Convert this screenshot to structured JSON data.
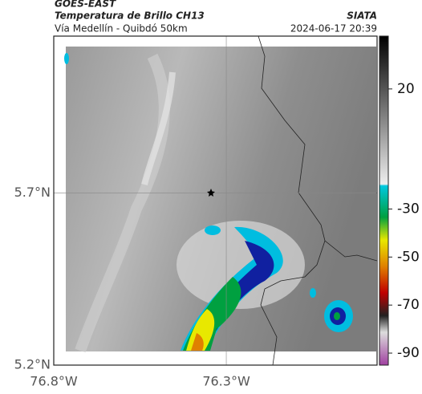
{
  "map": {
    "header": {
      "product": "GOES-EAST",
      "title": "Temperatura de Brillo CH13",
      "source": "SIATA",
      "subtitle": "Vía Medellín - Quibdó 50km",
      "date": "2024-06-17 20:39"
    },
    "xlim": [
      -76.8,
      -75.863
    ],
    "ylim": [
      5.2,
      6.156
    ],
    "xticks": [
      {
        "value": -76.8,
        "label": "76.8°W"
      },
      {
        "value": -76.3,
        "label": "76.3°W"
      }
    ],
    "yticks": [
      {
        "value": 5.2,
        "label": "5.2°N"
      },
      {
        "value": 5.7,
        "label": "5.7°N"
      }
    ],
    "colorbar": {
      "clim": [
        42,
        -95
      ],
      "ticks": [
        20,
        -30,
        -50,
        -70,
        -90
      ]
    }
  }
}
